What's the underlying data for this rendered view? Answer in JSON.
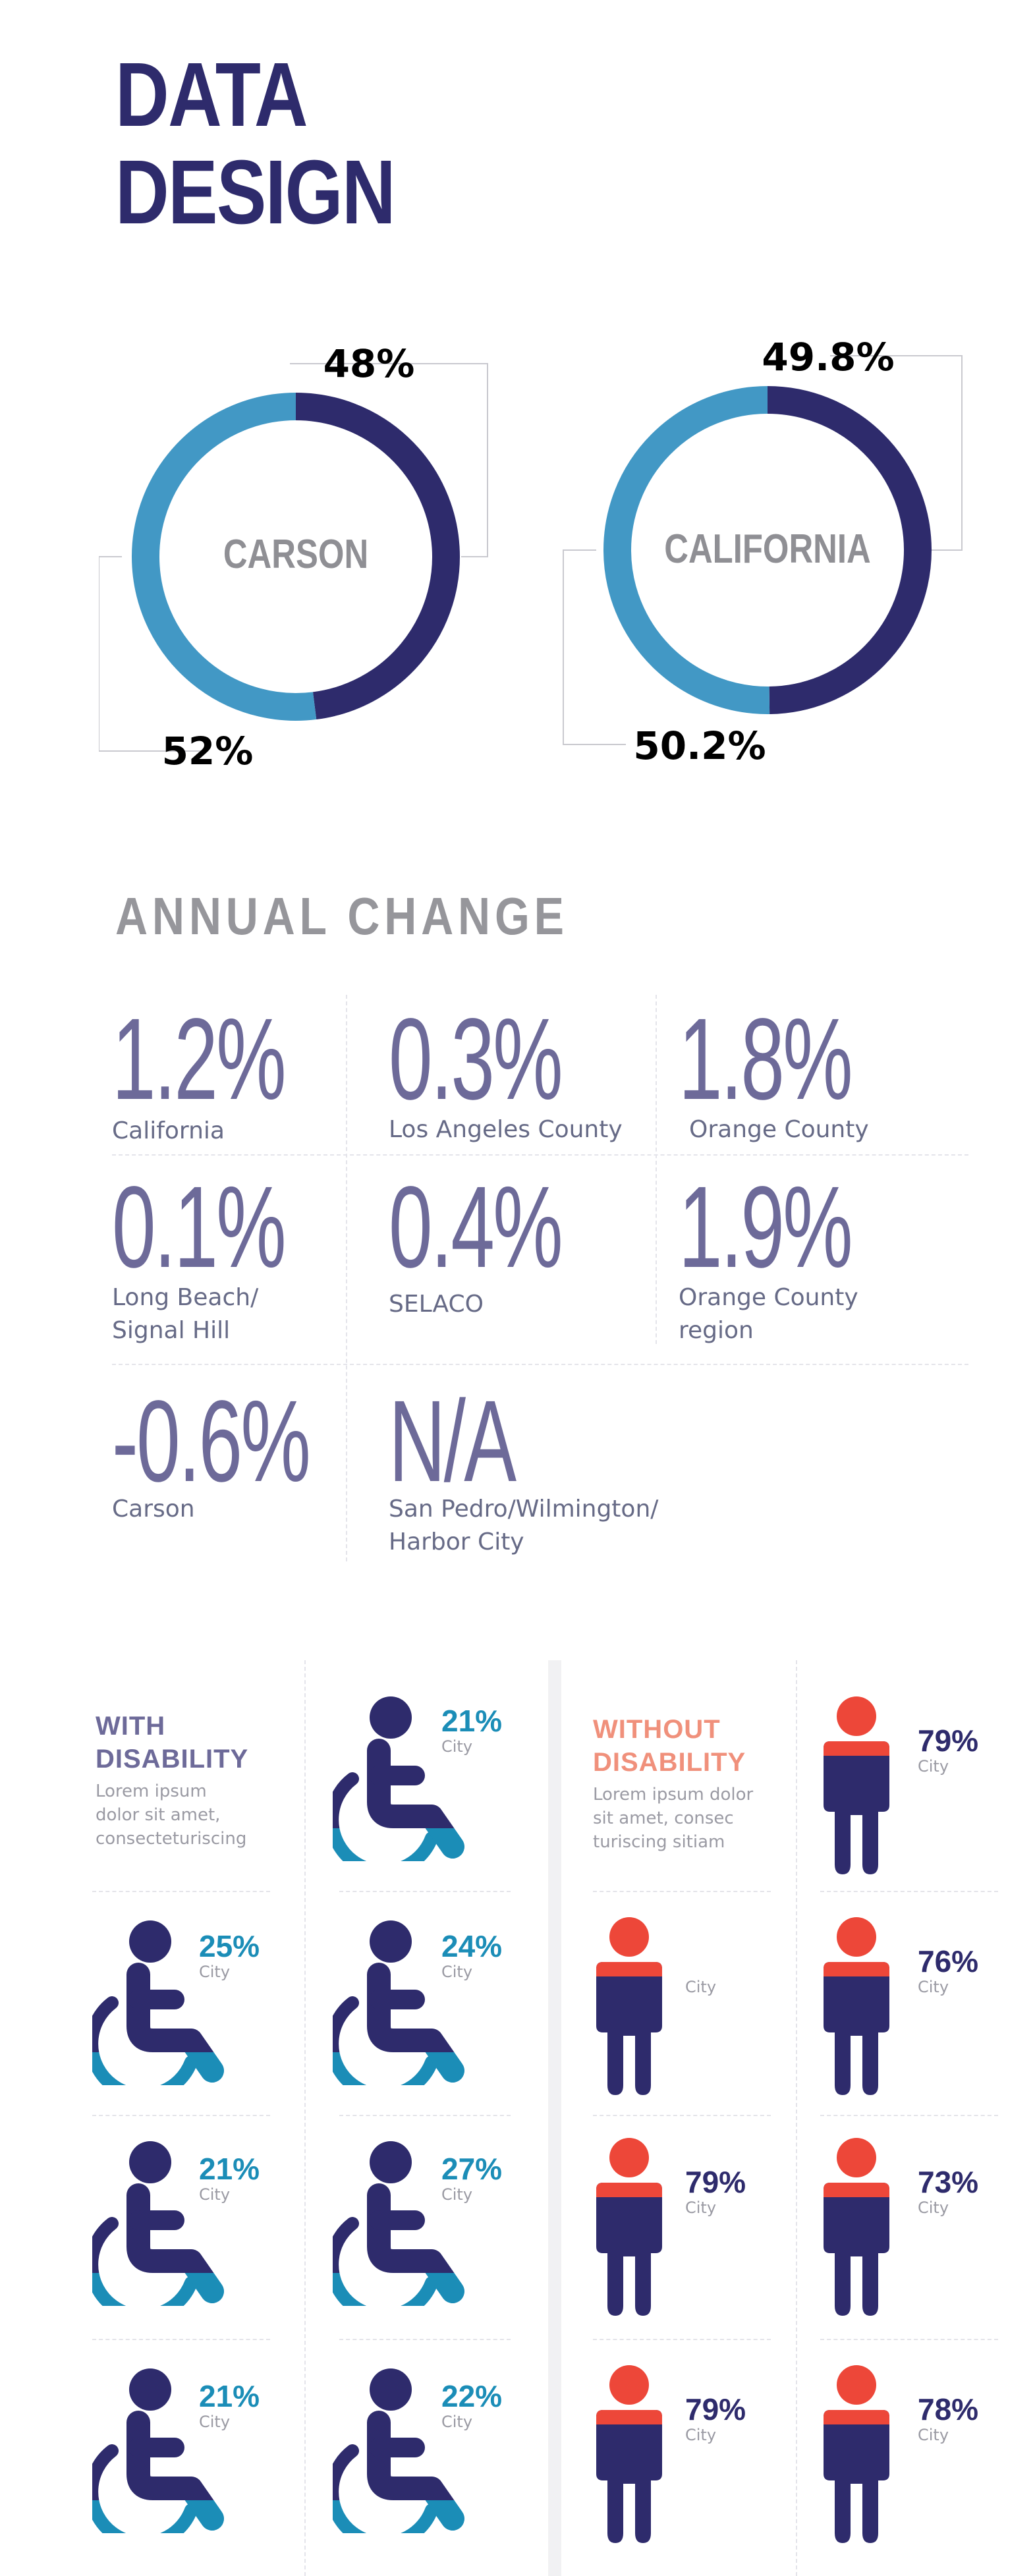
{
  "title_line1": "DATA",
  "title_line2": "DESIGN",
  "colors": {
    "dark": "#2e2b6c",
    "light": "#4298c5",
    "teal": "#1b8db7",
    "red": "#ed4739",
    "gray": "#96969b"
  },
  "chart_data": [
    {
      "type": "pie",
      "variant": "donut",
      "center_label": "CARSON",
      "slices": [
        {
          "label": "48%",
          "value": 48,
          "color": "#2e2b6c"
        },
        {
          "label": "52%",
          "value": 52,
          "color": "#4298c5"
        }
      ]
    },
    {
      "type": "pie",
      "variant": "donut",
      "center_label": "CALIFORNIA",
      "slices": [
        {
          "label": "49.8%",
          "value": 49.8,
          "color": "#2e2b6c"
        },
        {
          "label": "50.2%",
          "value": 50.2,
          "color": "#4298c5"
        }
      ]
    }
  ],
  "annual": {
    "title": "ANNUAL CHANGE",
    "stats": [
      {
        "value": "1.2%",
        "label": "California"
      },
      {
        "value": "0.3%",
        "label": "Los Angeles County"
      },
      {
        "value": "1.8%",
        "label": "Orange County"
      },
      {
        "value": "0.1%",
        "label": "Long Beach/\nSignal Hill"
      },
      {
        "value": "0.4%",
        "label": "SELACO"
      },
      {
        "value": "1.9%",
        "label": "Orange County\nregion"
      },
      {
        "value": "-0.6%",
        "label": "Carson"
      },
      {
        "value": "N/A",
        "label": "San Pedro/Wilmington/\nHarbor City"
      }
    ]
  },
  "disability": {
    "with_title": "WITH\nDISABILITY",
    "with_desc": "Lorem ipsum\ndolor sit amet,\nconsecteturiscing",
    "without_title": "WITHOUT\nDISABILITY",
    "without_desc": "Lorem ipsum dolor\nsit amet, consec\nturiscing sitiam",
    "with_items": [
      {
        "pct": "21%",
        "sub": "City"
      },
      {
        "pct": "25%",
        "sub": "City"
      },
      {
        "pct": "24%",
        "sub": "City"
      },
      {
        "pct": "21%",
        "sub": "City"
      },
      {
        "pct": "27%",
        "sub": "City"
      },
      {
        "pct": "21%",
        "sub": "City"
      },
      {
        "pct": "22%",
        "sub": "City"
      }
    ],
    "without_items": [
      {
        "pct": "79%",
        "sub": "City"
      },
      {
        "pct": "",
        "sub": "City"
      },
      {
        "pct": "76%",
        "sub": "City"
      },
      {
        "pct": "79%",
        "sub": "City"
      },
      {
        "pct": "73%",
        "sub": "City"
      },
      {
        "pct": "79%",
        "sub": "City"
      },
      {
        "pct": "78%",
        "sub": "City"
      }
    ]
  }
}
